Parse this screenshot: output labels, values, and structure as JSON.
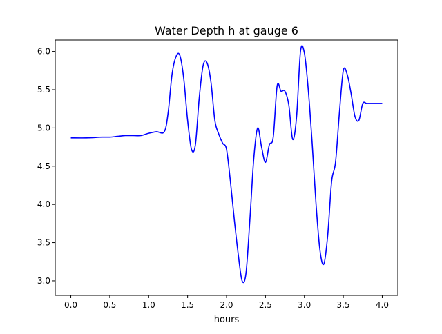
{
  "chart_data": {
    "type": "line",
    "title": "Water Depth h at gauge 6",
    "xlabel": "hours",
    "ylabel": "",
    "xlim": [
      -0.2,
      4.2
    ],
    "ylim": [
      2.81,
      6.15
    ],
    "xticks": [
      0.0,
      0.5,
      1.0,
      1.5,
      2.0,
      2.5,
      3.0,
      3.5,
      4.0
    ],
    "xtick_labels": [
      "0.0",
      "0.5",
      "1.0",
      "1.5",
      "2.0",
      "2.5",
      "3.0",
      "3.5",
      "4.0"
    ],
    "yticks": [
      3.0,
      3.5,
      4.0,
      4.5,
      5.0,
      5.5,
      6.0
    ],
    "ytick_labels": [
      "3.0",
      "3.5",
      "4.0",
      "4.5",
      "5.0",
      "5.5",
      "6.0"
    ],
    "grid": false,
    "line_color": "#0000ff",
    "series": [
      {
        "x": [
          0.0,
          0.2,
          0.4,
          0.5,
          0.6,
          0.7,
          0.8,
          0.9,
          1.0,
          1.1,
          1.2,
          1.25,
          1.3,
          1.35,
          1.4,
          1.45,
          1.5,
          1.55,
          1.6,
          1.65,
          1.7,
          1.75,
          1.8,
          1.85,
          1.9,
          1.95,
          2.0,
          2.05,
          2.1,
          2.15,
          2.2,
          2.25,
          2.3,
          2.35,
          2.4,
          2.45,
          2.5,
          2.55,
          2.6,
          2.65,
          2.7,
          2.75,
          2.8,
          2.85,
          2.9,
          2.95,
          3.0,
          3.05,
          3.1,
          3.15,
          3.2,
          3.25,
          3.3,
          3.35,
          3.4,
          3.45,
          3.5,
          3.55,
          3.6,
          3.65,
          3.7,
          3.75,
          3.8,
          3.85,
          3.9,
          3.95,
          4.0
        ],
        "y": [
          4.87,
          4.87,
          4.88,
          4.88,
          4.89,
          4.9,
          4.9,
          4.9,
          4.93,
          4.95,
          4.95,
          5.2,
          5.7,
          5.93,
          5.95,
          5.65,
          5.1,
          4.72,
          4.78,
          5.4,
          5.82,
          5.85,
          5.6,
          5.1,
          4.92,
          4.8,
          4.72,
          4.3,
          3.8,
          3.35,
          3.0,
          3.1,
          3.8,
          4.6,
          5.0,
          4.75,
          4.55,
          4.78,
          4.88,
          5.55,
          5.48,
          5.48,
          5.3,
          4.85,
          5.15,
          6.0,
          5.98,
          5.5,
          4.8,
          4.0,
          3.4,
          3.22,
          3.6,
          4.3,
          4.55,
          5.2,
          5.75,
          5.7,
          5.45,
          5.15,
          5.1,
          5.32,
          5.32,
          5.32,
          5.32,
          5.32,
          5.32
        ]
      }
    ]
  }
}
